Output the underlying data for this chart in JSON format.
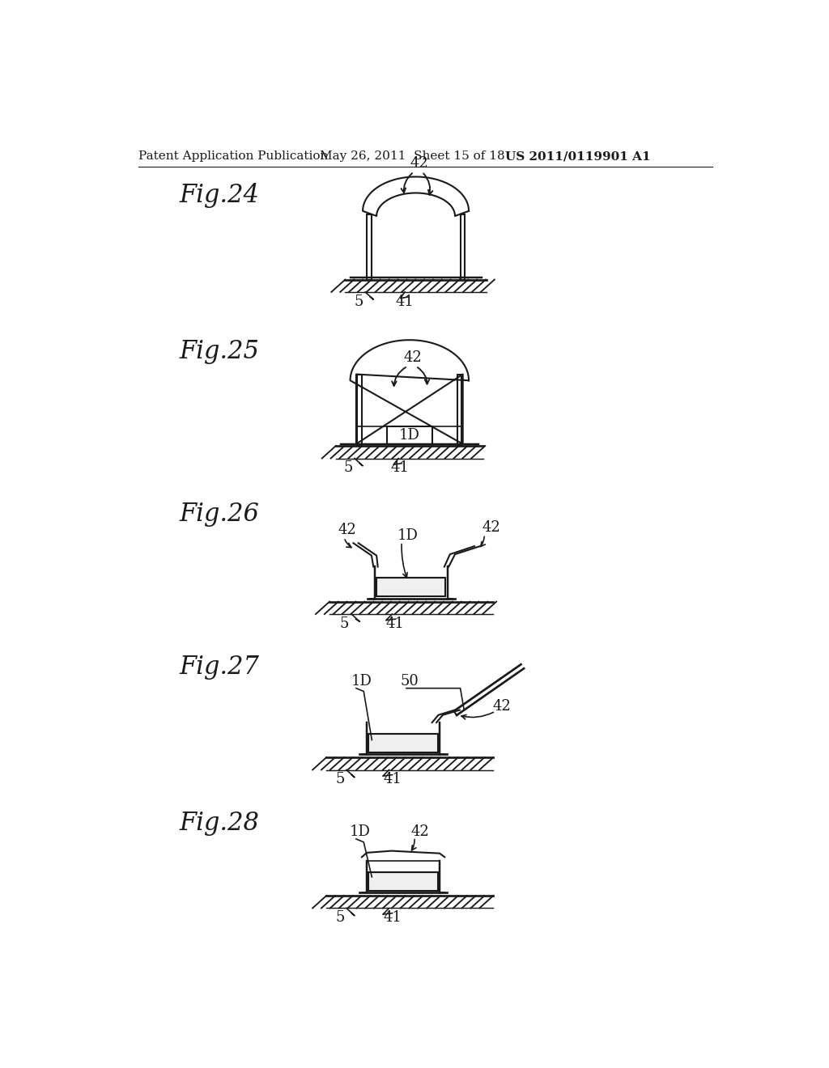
{
  "bg_color": "#ffffff",
  "line_color": "#1a1a1a",
  "header_text": "Patent Application Publication",
  "header_date": "May 26, 2011  Sheet 15 of 18",
  "header_patent": "US 2011/0119901 A1",
  "fig_label_fontsize": 22,
  "annotation_fontsize": 13,
  "header_fontsize": 11
}
